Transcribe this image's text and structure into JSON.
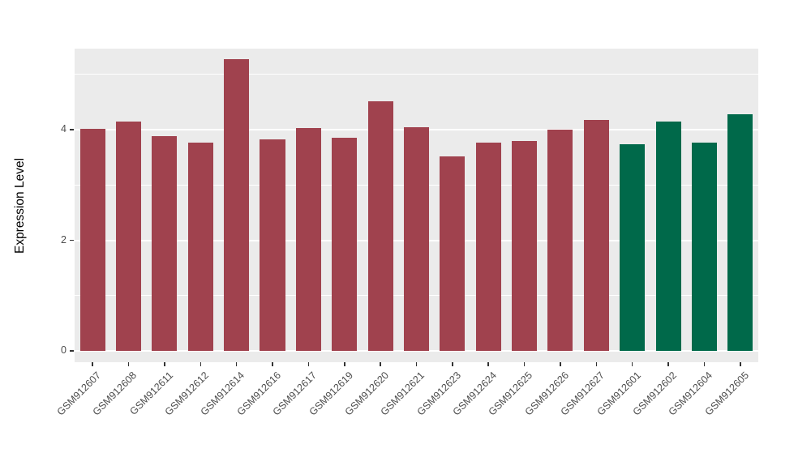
{
  "chart_data": {
    "type": "bar",
    "title": "",
    "xlabel": "",
    "ylabel": "Expression Level",
    "ylim": [
      0,
      5.47
    ],
    "yticks": [
      0,
      2,
      4
    ],
    "minor_gridlines": [
      1,
      3,
      5
    ],
    "grid": "on",
    "legend": "none",
    "panel_bg": "#ebebeb",
    "grid_color": "#ffffff",
    "categories": [
      "GSM912607",
      "GSM912608",
      "GSM912611",
      "GSM912612",
      "GSM912614",
      "GSM912616",
      "GSM912617",
      "GSM912619",
      "GSM912620",
      "GSM912621",
      "GSM912623",
      "GSM912624",
      "GSM912625",
      "GSM912626",
      "GSM912627",
      "GSM912601",
      "GSM912602",
      "GSM912604",
      "GSM912605"
    ],
    "values": [
      4.02,
      4.15,
      3.88,
      3.76,
      5.28,
      3.83,
      4.03,
      3.86,
      4.52,
      4.04,
      3.51,
      3.76,
      3.8,
      4.0,
      4.18,
      3.74,
      4.15,
      3.77,
      4.28
    ],
    "groups": [
      "red",
      "red",
      "red",
      "red",
      "red",
      "red",
      "red",
      "red",
      "red",
      "red",
      "red",
      "red",
      "red",
      "red",
      "red",
      "green",
      "green",
      "green",
      "green"
    ],
    "group_colors": {
      "red": "#a0424e",
      "green": "#00694a"
    }
  }
}
